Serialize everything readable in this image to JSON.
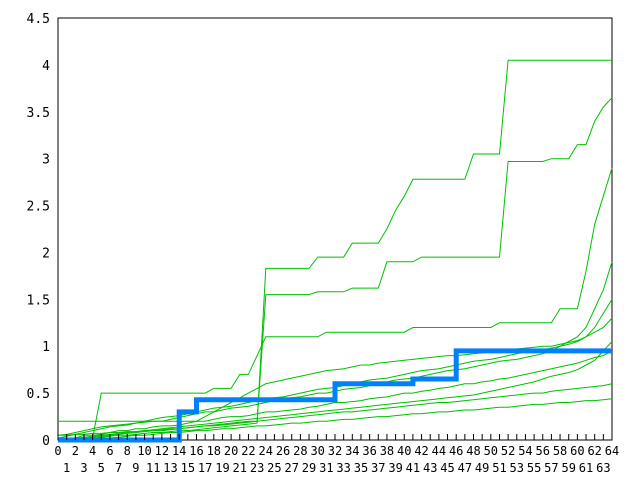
{
  "chart_data": {
    "type": "line",
    "title": "",
    "xlabel": "",
    "ylabel": "",
    "xlim": [
      0,
      64
    ],
    "ylim": [
      0,
      4.5
    ],
    "y_ticks": [
      "0",
      "0.5",
      "1",
      "1.5",
      "2",
      "2.5",
      "3",
      "3.5",
      "4",
      "4.5"
    ],
    "x_ticks": [
      "0",
      "1",
      "2",
      "3",
      "4",
      "5",
      "6",
      "7",
      "8",
      "9",
      "10",
      "11",
      "12",
      "13",
      "14",
      "15",
      "16",
      "17",
      "18",
      "19",
      "20",
      "21",
      "22",
      "23",
      "24",
      "25",
      "26",
      "27",
      "28",
      "29",
      "30",
      "31",
      "32",
      "33",
      "34",
      "35",
      "36",
      "37",
      "38",
      "39",
      "40",
      "41",
      "42",
      "43",
      "44",
      "45",
      "46",
      "47",
      "48",
      "49",
      "50",
      "51",
      "52",
      "53",
      "54",
      "55",
      "56",
      "57",
      "58",
      "59",
      "60",
      "61",
      "62",
      "63",
      "64"
    ],
    "grid": false,
    "colors": {
      "series": "#00c000",
      "highlight": "#0080ff"
    },
    "series": [
      {
        "values": [
          0,
          0,
          0,
          0,
          0.02,
          0.03,
          0.04,
          0.05,
          0.05,
          0.06,
          0.07,
          0.08,
          0.08,
          0.09,
          0.1,
          0.1,
          0.11,
          0.12,
          0.13,
          0.14,
          0.15,
          0.16,
          0.17,
          0.18,
          1.83,
          1.83,
          1.83,
          1.83,
          1.83,
          1.83,
          1.95,
          1.95,
          1.95,
          1.95,
          2.1,
          2.1,
          2.1,
          2.1,
          2.25,
          2.45,
          2.6,
          2.78,
          2.78,
          2.78,
          2.78,
          2.78,
          2.78,
          2.78,
          3.05,
          3.05,
          3.05,
          3.05,
          4.05,
          4.05,
          4.05,
          4.05,
          4.05,
          4.05,
          4.05,
          4.05,
          4.05,
          4.05,
          4.05,
          4.05,
          4.05
        ]
      },
      {
        "values": [
          0.05,
          0.05,
          0.06,
          0.06,
          0.07,
          0.07,
          0.08,
          0.08,
          0.09,
          0.09,
          0.1,
          0.1,
          0.11,
          0.12,
          0.12,
          0.13,
          0.14,
          0.15,
          0.15,
          0.16,
          0.17,
          0.18,
          0.19,
          0.2,
          1.55,
          1.55,
          1.55,
          1.55,
          1.55,
          1.55,
          1.58,
          1.58,
          1.58,
          1.58,
          1.62,
          1.62,
          1.62,
          1.62,
          1.9,
          1.9,
          1.9,
          1.9,
          1.95,
          1.95,
          1.95,
          1.95,
          1.95,
          1.95,
          1.95,
          1.95,
          1.95,
          1.95,
          2.97,
          2.97,
          2.97,
          2.97,
          2.97,
          3.0,
          3.0,
          3.0,
          3.15,
          3.15,
          3.4,
          3.55,
          3.65
        ]
      },
      {
        "values": [
          0.02,
          0.02,
          0.02,
          0.02,
          0.02,
          0.5,
          0.5,
          0.5,
          0.5,
          0.5,
          0.5,
          0.5,
          0.5,
          0.5,
          0.5,
          0.5,
          0.5,
          0.5,
          0.55,
          0.55,
          0.55,
          0.7,
          0.7,
          0.9,
          1.1,
          1.1,
          1.1,
          1.1,
          1.1,
          1.1,
          1.1,
          1.15,
          1.15,
          1.15,
          1.15,
          1.15,
          1.15,
          1.15,
          1.15,
          1.15,
          1.15,
          1.2,
          1.2,
          1.2,
          1.2,
          1.2,
          1.2,
          1.2,
          1.2,
          1.2,
          1.2,
          1.25,
          1.25,
          1.25,
          1.25,
          1.25,
          1.25,
          1.25,
          1.4,
          1.4,
          1.4,
          1.8,
          2.3,
          2.6,
          2.9
        ]
      },
      {
        "values": [
          0,
          0,
          0.02,
          0.05,
          0.05,
          0.06,
          0.08,
          0.1,
          0.1,
          0.12,
          0.12,
          0.14,
          0.15,
          0.15,
          0.16,
          0.18,
          0.2,
          0.2,
          0.22,
          0.24,
          0.25,
          0.25,
          0.26,
          0.28,
          0.3,
          0.3,
          0.31,
          0.32,
          0.33,
          0.35,
          0.36,
          0.38,
          0.4,
          0.4,
          0.41,
          0.42,
          0.44,
          0.45,
          0.46,
          0.48,
          0.5,
          0.5,
          0.52,
          0.53,
          0.55,
          0.56,
          0.58,
          0.6,
          0.6,
          0.62,
          0.63,
          0.65,
          0.66,
          0.68,
          0.7,
          0.72,
          0.74,
          0.76,
          0.78,
          0.8,
          0.82,
          0.85,
          0.88,
          0.9,
          0.95
        ]
      },
      {
        "values": [
          0,
          0,
          0,
          0.02,
          0.03,
          0.04,
          0.05,
          0.06,
          0.07,
          0.08,
          0.09,
          0.1,
          0.1,
          0.11,
          0.12,
          0.13,
          0.14,
          0.15,
          0.16,
          0.17,
          0.18,
          0.19,
          0.2,
          0.2,
          0.21,
          0.22,
          0.23,
          0.24,
          0.25,
          0.26,
          0.27,
          0.28,
          0.29,
          0.3,
          0.3,
          0.31,
          0.32,
          0.33,
          0.34,
          0.35,
          0.36,
          0.37,
          0.38,
          0.39,
          0.4,
          0.4,
          0.41,
          0.42,
          0.43,
          0.44,
          0.45,
          0.46,
          0.47,
          0.48,
          0.49,
          0.5,
          0.5,
          0.52,
          0.53,
          0.54,
          0.55,
          0.56,
          0.57,
          0.58,
          0.6
        ]
      },
      {
        "values": [
          0.05,
          0.06,
          0.08,
          0.1,
          0.12,
          0.14,
          0.15,
          0.16,
          0.17,
          0.18,
          0.19,
          0.2,
          0.2,
          0.22,
          0.24,
          0.26,
          0.28,
          0.3,
          0.3,
          0.32,
          0.34,
          0.35,
          0.36,
          0.38,
          0.4,
          0.42,
          0.44,
          0.45,
          0.46,
          0.48,
          0.5,
          0.5,
          0.52,
          0.54,
          0.55,
          0.56,
          0.58,
          0.6,
          0.62,
          0.64,
          0.65,
          0.66,
          0.68,
          0.7,
          0.72,
          0.74,
          0.75,
          0.76,
          0.78,
          0.8,
          0.82,
          0.84,
          0.85,
          0.86,
          0.88,
          0.9,
          0.92,
          0.95,
          1.0,
          1.05,
          1.1,
          1.2,
          1.4,
          1.6,
          1.9
        ]
      },
      {
        "values": [
          0,
          0,
          0,
          0,
          0,
          0.01,
          0.02,
          0.03,
          0.04,
          0.05,
          0.05,
          0.06,
          0.07,
          0.08,
          0.08,
          0.09,
          0.1,
          0.1,
          0.11,
          0.12,
          0.12,
          0.13,
          0.14,
          0.15,
          0.15,
          0.16,
          0.17,
          0.18,
          0.18,
          0.19,
          0.2,
          0.2,
          0.21,
          0.22,
          0.22,
          0.23,
          0.24,
          0.25,
          0.25,
          0.26,
          0.27,
          0.28,
          0.28,
          0.29,
          0.3,
          0.3,
          0.31,
          0.32,
          0.32,
          0.33,
          0.34,
          0.35,
          0.35,
          0.36,
          0.37,
          0.38,
          0.38,
          0.39,
          0.4,
          0.4,
          0.41,
          0.42,
          0.42,
          0.43,
          0.44
        ]
      },
      {
        "values": [
          0.02,
          0.04,
          0.06,
          0.08,
          0.1,
          0.12,
          0.14,
          0.15,
          0.16,
          0.18,
          0.2,
          0.22,
          0.24,
          0.25,
          0.26,
          0.28,
          0.3,
          0.32,
          0.34,
          0.35,
          0.36,
          0.38,
          0.4,
          0.42,
          0.44,
          0.45,
          0.46,
          0.48,
          0.5,
          0.52,
          0.54,
          0.55,
          0.56,
          0.58,
          0.6,
          0.62,
          0.64,
          0.65,
          0.66,
          0.68,
          0.7,
          0.72,
          0.74,
          0.75,
          0.76,
          0.78,
          0.8,
          0.82,
          0.84,
          0.85,
          0.86,
          0.88,
          0.9,
          0.92,
          0.94,
          0.95,
          0.96,
          0.98,
          1.0,
          1.02,
          1.05,
          1.1,
          1.15,
          1.2,
          1.3
        ]
      },
      {
        "values": [
          0,
          0.01,
          0.02,
          0.03,
          0.04,
          0.05,
          0.06,
          0.07,
          0.08,
          0.09,
          0.1,
          0.11,
          0.12,
          0.13,
          0.14,
          0.15,
          0.16,
          0.17,
          0.18,
          0.19,
          0.2,
          0.21,
          0.22,
          0.23,
          0.24,
          0.25,
          0.26,
          0.27,
          0.28,
          0.29,
          0.3,
          0.31,
          0.32,
          0.33,
          0.34,
          0.35,
          0.36,
          0.37,
          0.38,
          0.39,
          0.4,
          0.41,
          0.42,
          0.43,
          0.44,
          0.45,
          0.46,
          0.47,
          0.48,
          0.5,
          0.52,
          0.54,
          0.56,
          0.58,
          0.6,
          0.62,
          0.65,
          0.68,
          0.7,
          0.72,
          0.75,
          0.8,
          0.85,
          0.95,
          1.05
        ]
      },
      {
        "values": [
          0.2,
          0.2,
          0.2,
          0.2,
          0.2,
          0.2,
          0.2,
          0.2,
          0.2,
          0.2,
          0.2,
          0.2,
          0.2,
          0.2,
          0.2,
          0.2,
          0.2,
          0.25,
          0.3,
          0.35,
          0.4,
          0.45,
          0.5,
          0.55,
          0.6,
          0.62,
          0.64,
          0.66,
          0.68,
          0.7,
          0.72,
          0.74,
          0.75,
          0.76,
          0.78,
          0.8,
          0.8,
          0.82,
          0.83,
          0.84,
          0.85,
          0.86,
          0.87,
          0.88,
          0.89,
          0.9,
          0.9,
          0.91,
          0.92,
          0.93,
          0.94,
          0.95,
          0.96,
          0.97,
          0.98,
          0.99,
          1.0,
          1.0,
          1.02,
          1.04,
          1.06,
          1.1,
          1.2,
          1.35,
          1.5
        ]
      }
    ],
    "highlight": {
      "values": [
        0,
        0,
        0,
        0,
        0,
        0,
        0,
        0,
        0,
        0,
        0,
        0,
        0,
        0,
        0.3,
        0.3,
        0.43,
        0.43,
        0.43,
        0.43,
        0.43,
        0.43,
        0.43,
        0.43,
        0.43,
        0.43,
        0.43,
        0.43,
        0.43,
        0.43,
        0.43,
        0.43,
        0.6,
        0.6,
        0.6,
        0.6,
        0.6,
        0.6,
        0.6,
        0.6,
        0.6,
        0.65,
        0.65,
        0.65,
        0.65,
        0.65,
        0.95,
        0.95,
        0.95,
        0.95,
        0.95,
        0.95,
        0.95,
        0.95,
        0.95,
        0.95,
        0.95,
        0.95,
        0.95,
        0.95,
        0.95,
        0.95,
        0.95,
        0.95,
        0.95
      ]
    }
  }
}
